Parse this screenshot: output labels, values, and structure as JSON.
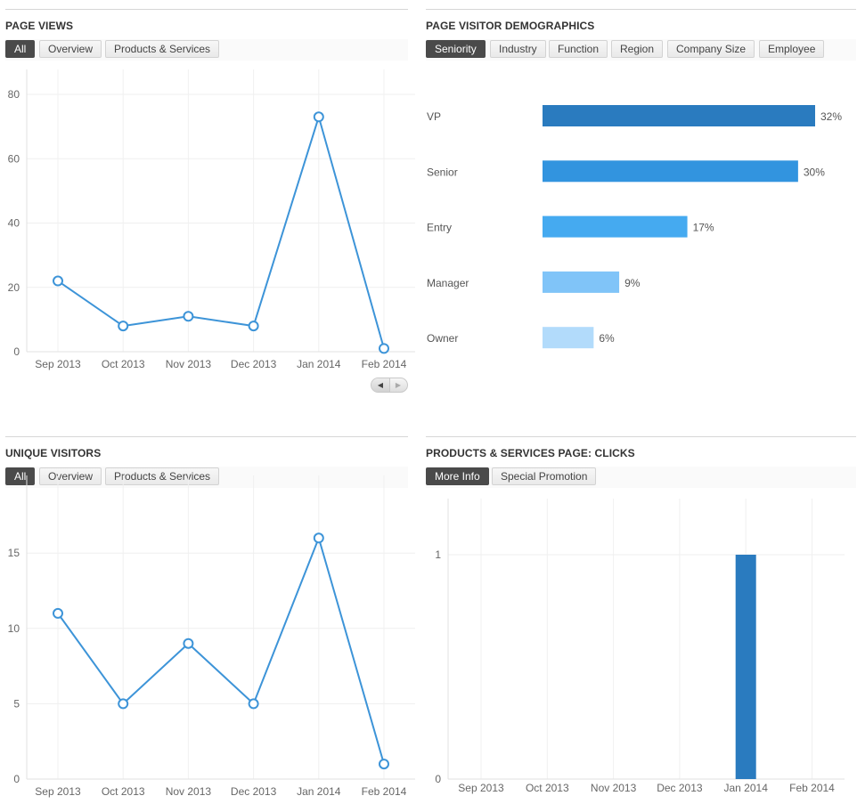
{
  "panels": {
    "page_views": {
      "title": "PAGE VIEWS",
      "tabs": [
        "All",
        "Overview",
        "Products & Services"
      ],
      "active_tab": 0
    },
    "demographics": {
      "title": "PAGE VISITOR DEMOGRAPHICS",
      "tabs": [
        "Seniority",
        "Industry",
        "Function",
        "Region",
        "Company Size",
        "Employee"
      ],
      "active_tab": 0
    },
    "unique_visitors": {
      "title": "UNIQUE VISITORS",
      "tabs": [
        "All",
        "Overview",
        "Products & Services"
      ],
      "active_tab": 0
    },
    "clicks": {
      "title": "PRODUCTS & SERVICES PAGE: CLICKS",
      "tabs": [
        "More Info",
        "Special Promotion"
      ],
      "active_tab": 0
    }
  },
  "scroller": {
    "left": "◀",
    "right": "▶"
  },
  "chart_data": [
    {
      "id": "page_views",
      "type": "line",
      "categories": [
        "Sep 2013",
        "Oct 2013",
        "Nov 2013",
        "Dec 2013",
        "Jan 2014",
        "Feb 2014"
      ],
      "series": [
        {
          "values": [
            22,
            8,
            11,
            8,
            73,
            1
          ]
        }
      ],
      "yticks": [
        0,
        20,
        40,
        60,
        80
      ],
      "ylim": [
        0,
        80
      ],
      "grid": true,
      "color": "#3d94d8"
    },
    {
      "id": "demographics",
      "type": "bar",
      "orientation": "horizontal",
      "categories": [
        "VP",
        "Senior",
        "Entry",
        "Manager",
        "Owner"
      ],
      "values": [
        32,
        30,
        17,
        9,
        6
      ],
      "value_labels": [
        "32%",
        "30%",
        "17%",
        "9%",
        "6%"
      ],
      "colors": [
        "#2a7bbf",
        "#3294df",
        "#45aaf0",
        "#80c4f8",
        "#b2dbfb"
      ]
    },
    {
      "id": "unique_visitors",
      "type": "line",
      "categories": [
        "Sep 2013",
        "Oct 2013",
        "Nov 2013",
        "Dec 2013",
        "Jan 2014",
        "Feb 2014"
      ],
      "series": [
        {
          "values": [
            11,
            5,
            9,
            5,
            16,
            1
          ]
        }
      ],
      "yticks": [
        0,
        5,
        10,
        15
      ],
      "ylim": [
        0,
        18.5
      ],
      "grid": true,
      "color": "#3d94d8"
    },
    {
      "id": "clicks",
      "type": "bar",
      "categories": [
        "Sep 2013",
        "Oct 2013",
        "Nov 2013",
        "Dec 2013",
        "Jan 2014",
        "Feb 2014"
      ],
      "values": [
        0,
        0,
        0,
        0,
        1,
        0
      ],
      "yticks": [
        0,
        1
      ],
      "ylim": [
        0,
        1.25
      ],
      "grid": true,
      "color": "#2a7bbf"
    }
  ]
}
